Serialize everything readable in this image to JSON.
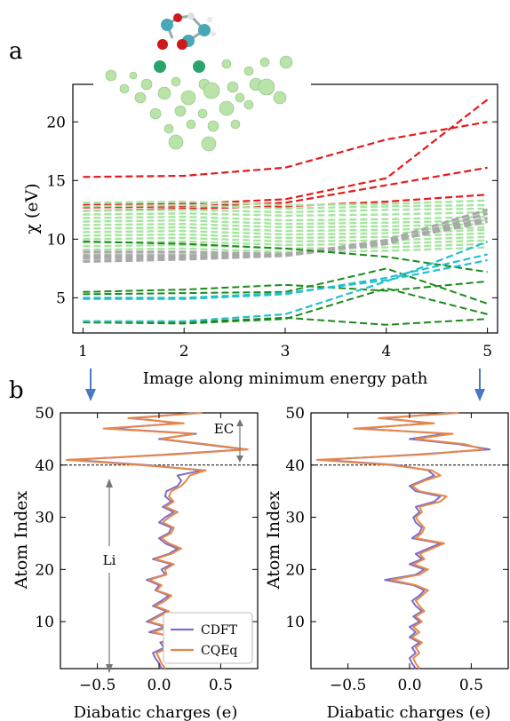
{
  "colors": {
    "red": "#e41a1c",
    "lightgreen": "#a6e4a0",
    "gray": "#a9a9a9",
    "green": "#1b8a1b",
    "cyan": "#22c0cc",
    "cdft": "#7b6fc7",
    "cqeq": "#e8874a",
    "arrow": "#4a78c8",
    "atom_light": "#b9e3a8",
    "atom_dark": "#2aa46a"
  },
  "chart_data": [
    {
      "panel_label": "a",
      "type": "line",
      "style": "dashed",
      "xlabel": "Image along minimum energy path",
      "ylabel": "χ (eV)",
      "x": [
        1,
        2,
        3,
        4,
        5
      ],
      "xlim": [
        0.9,
        5.1
      ],
      "ylim": [
        2.0,
        23.2
      ],
      "xticks": [
        1,
        2,
        3,
        4,
        5
      ],
      "yticks": [
        5,
        10,
        15,
        20
      ],
      "inset": "molecule-cluster-image",
      "groups": [
        {
          "color": "red",
          "series": [
            [
              15.3,
              15.4,
              16.1,
              18.5,
              20.0
            ],
            [
              12.9,
              13.0,
              13.4,
              15.2,
              21.9
            ],
            [
              12.7,
              12.8,
              13.1,
              14.6,
              16.1
            ],
            [
              12.4,
              12.6,
              12.8,
              13.2,
              13.8
            ]
          ]
        },
        {
          "color": "lightgreen",
          "series": [
            [
              13.1,
              13.2,
              12.9,
              13.0,
              13.3
            ],
            [
              12.8,
              12.9,
              12.6,
              12.8,
              12.9
            ],
            [
              12.4,
              12.5,
              12.3,
              12.5,
              12.6
            ],
            [
              12.1,
              12.2,
              12.0,
              12.1,
              12.3
            ],
            [
              11.8,
              11.9,
              11.6,
              11.7,
              11.9
            ],
            [
              11.5,
              11.6,
              11.3,
              11.4,
              11.6
            ],
            [
              11.2,
              11.3,
              11.0,
              11.1,
              11.3
            ],
            [
              10.9,
              11.0,
              10.7,
              10.8,
              11.0
            ],
            [
              10.6,
              10.7,
              10.4,
              10.5,
              10.8
            ],
            [
              10.3,
              10.4,
              10.1,
              10.2,
              10.5
            ],
            [
              10.0,
              10.1,
              9.8,
              9.9,
              10.2
            ],
            [
              9.7,
              9.8,
              9.5,
              9.6,
              9.9
            ],
            [
              9.4,
              9.5,
              9.2,
              9.3,
              9.6
            ],
            [
              9.1,
              9.2,
              8.9,
              9.0,
              9.3
            ]
          ]
        },
        {
          "color": "gray",
          "series": [
            [
              8.9,
              8.9,
              8.7,
              9.6,
              12.2
            ],
            [
              8.6,
              8.6,
              8.6,
              9.7,
              11.8
            ],
            [
              8.4,
              8.5,
              8.6,
              9.8,
              11.5
            ],
            [
              8.1,
              8.3,
              8.6,
              9.9,
              12.5
            ]
          ]
        },
        {
          "color": "green",
          "series": [
            [
              9.8,
              9.6,
              9.2,
              8.5,
              7.2
            ],
            [
              5.5,
              5.7,
              6.1,
              5.6,
              6.4
            ],
            [
              5.3,
              5.4,
              5.5,
              7.5,
              4.5
            ],
            [
              3.0,
              2.9,
              3.3,
              2.7,
              3.2
            ],
            [
              2.9,
              2.8,
              3.2,
              5.8,
              3.6
            ]
          ]
        },
        {
          "color": "cyan",
          "series": [
            [
              5.0,
              5.0,
              5.4,
              6.5,
              8.2
            ],
            [
              4.9,
              4.9,
              5.3,
              6.7,
              8.7
            ],
            [
              3.0,
              3.0,
              3.6,
              6.4,
              9.8
            ]
          ]
        }
      ]
    },
    {
      "panel_label": "b",
      "type": "line",
      "xlabel": "Diabatic charges (e)",
      "ylabel": "Atom Index",
      "xlim": [
        -0.8,
        0.8
      ],
      "ylim": [
        1,
        50
      ],
      "xticks": [
        -0.5,
        0.0,
        0.5
      ],
      "yticks": [
        10,
        20,
        30,
        40,
        50
      ],
      "divider_y": 40,
      "annotations": [
        "EC",
        "Li"
      ],
      "legend": "bottom-right",
      "series": [
        {
          "name": "CDFT",
          "color": "cdft",
          "y": [
            1,
            2,
            3,
            4,
            5,
            6,
            7,
            8,
            9,
            10,
            11,
            12,
            13,
            14,
            15,
            16,
            17,
            18,
            19,
            20,
            21,
            22,
            23,
            24,
            25,
            26,
            27,
            28,
            29,
            30,
            31,
            32,
            33,
            34,
            35,
            36,
            37,
            38,
            39,
            40,
            41,
            42,
            43,
            44,
            45,
            46,
            47,
            48,
            49,
            50
          ],
          "x": [
            0.02,
            0.0,
            -0.03,
            -0.05,
            0.04,
            0.01,
            0.15,
            -0.08,
            0.05,
            -0.1,
            -0.02,
            0.06,
            -0.05,
            0.02,
            0.08,
            -0.03,
            0.0,
            -0.1,
            0.05,
            0.02,
            0.1,
            -0.05,
            0.08,
            0.15,
            0.05,
            0.0,
            0.08,
            0.1,
            0.0,
            0.05,
            0.12,
            0.03,
            0.1,
            0.05,
            0.06,
            0.15,
            0.18,
            0.15,
            0.35,
            -0.1,
            -0.7,
            0.05,
            0.7,
            0.35,
            0.0,
            0.3,
            -0.4,
            0.15,
            -0.2,
            0.3
          ]
        },
        {
          "name": "CQEq",
          "color": "cqeq",
          "y": [
            1,
            2,
            3,
            4,
            5,
            6,
            7,
            8,
            9,
            10,
            11,
            12,
            13,
            14,
            15,
            16,
            17,
            18,
            19,
            20,
            21,
            22,
            23,
            24,
            25,
            26,
            27,
            28,
            29,
            30,
            31,
            32,
            33,
            34,
            35,
            36,
            37,
            38,
            39,
            40,
            41,
            42,
            43,
            44,
            45,
            46,
            47,
            48,
            49,
            50
          ],
          "x": [
            0.05,
            0.02,
            0.0,
            -0.02,
            0.08,
            0.03,
            0.12,
            -0.05,
            0.08,
            -0.08,
            0.0,
            0.08,
            -0.03,
            0.05,
            0.1,
            -0.02,
            0.02,
            -0.08,
            0.06,
            0.05,
            0.12,
            -0.03,
            0.1,
            0.18,
            0.08,
            0.02,
            0.1,
            0.12,
            0.03,
            0.08,
            0.15,
            0.05,
            0.12,
            0.08,
            0.1,
            0.18,
            0.22,
            0.25,
            0.38,
            -0.15,
            -0.75,
            0.1,
            0.72,
            0.38,
            0.02,
            0.28,
            -0.45,
            0.2,
            -0.25,
            0.35
          ]
        }
      ]
    },
    {
      "panel_label": "",
      "type": "line",
      "xlabel": "Diabatic charges (e)",
      "ylabel": "Atom Index",
      "xlim": [
        -0.8,
        0.8
      ],
      "ylim": [
        1,
        50
      ],
      "xticks": [
        -0.5,
        0.0,
        0.5
      ],
      "yticks": [
        10,
        20,
        30,
        40,
        50
      ],
      "divider_y": 40,
      "series": [
        {
          "name": "CDFT",
          "color": "cdft",
          "y": [
            1,
            2,
            3,
            4,
            5,
            6,
            7,
            8,
            9,
            10,
            11,
            12,
            13,
            14,
            15,
            16,
            17,
            18,
            19,
            20,
            21,
            22,
            23,
            24,
            25,
            26,
            27,
            28,
            29,
            30,
            31,
            32,
            33,
            34,
            35,
            36,
            37,
            38,
            39,
            40,
            41,
            42,
            43,
            44,
            45,
            46,
            47,
            48,
            49,
            50
          ],
          "x": [
            0.05,
            0.02,
            0.0,
            0.05,
            0.02,
            0.08,
            0.0,
            0.05,
            0.0,
            0.08,
            0.03,
            0.1,
            0.05,
            0.02,
            0.08,
            0.12,
            0.03,
            -0.2,
            0.05,
            0.12,
            0.0,
            0.1,
            0.05,
            0.15,
            0.25,
            0.02,
            0.08,
            0.1,
            0.05,
            0.03,
            0.08,
            0.05,
            0.2,
            0.25,
            0.05,
            0.0,
            0.1,
            0.2,
            0.15,
            -0.1,
            -0.7,
            0.05,
            0.65,
            0.4,
            0.0,
            0.3,
            -0.4,
            0.15,
            -0.2,
            0.35
          ]
        },
        {
          "name": "CQEq",
          "color": "cqeq",
          "y": [
            1,
            2,
            3,
            4,
            5,
            6,
            7,
            8,
            9,
            10,
            11,
            12,
            13,
            14,
            15,
            16,
            17,
            18,
            19,
            20,
            21,
            22,
            23,
            24,
            25,
            26,
            27,
            28,
            29,
            30,
            31,
            32,
            33,
            34,
            35,
            36,
            37,
            38,
            39,
            40,
            41,
            42,
            43,
            44,
            45,
            46,
            47,
            48,
            49,
            50
          ],
          "x": [
            0.08,
            0.05,
            0.03,
            0.08,
            0.05,
            0.1,
            0.02,
            0.08,
            0.03,
            0.1,
            0.05,
            0.12,
            0.08,
            0.05,
            0.1,
            0.15,
            0.05,
            -0.15,
            0.08,
            0.15,
            0.03,
            0.12,
            0.08,
            0.18,
            0.28,
            0.05,
            0.1,
            0.12,
            0.08,
            0.05,
            0.1,
            0.08,
            0.25,
            0.3,
            0.08,
            0.02,
            0.12,
            0.25,
            0.18,
            -0.15,
            -0.75,
            0.1,
            0.6,
            0.45,
            0.05,
            0.35,
            -0.45,
            0.2,
            -0.25,
            0.4
          ]
        }
      ]
    }
  ]
}
